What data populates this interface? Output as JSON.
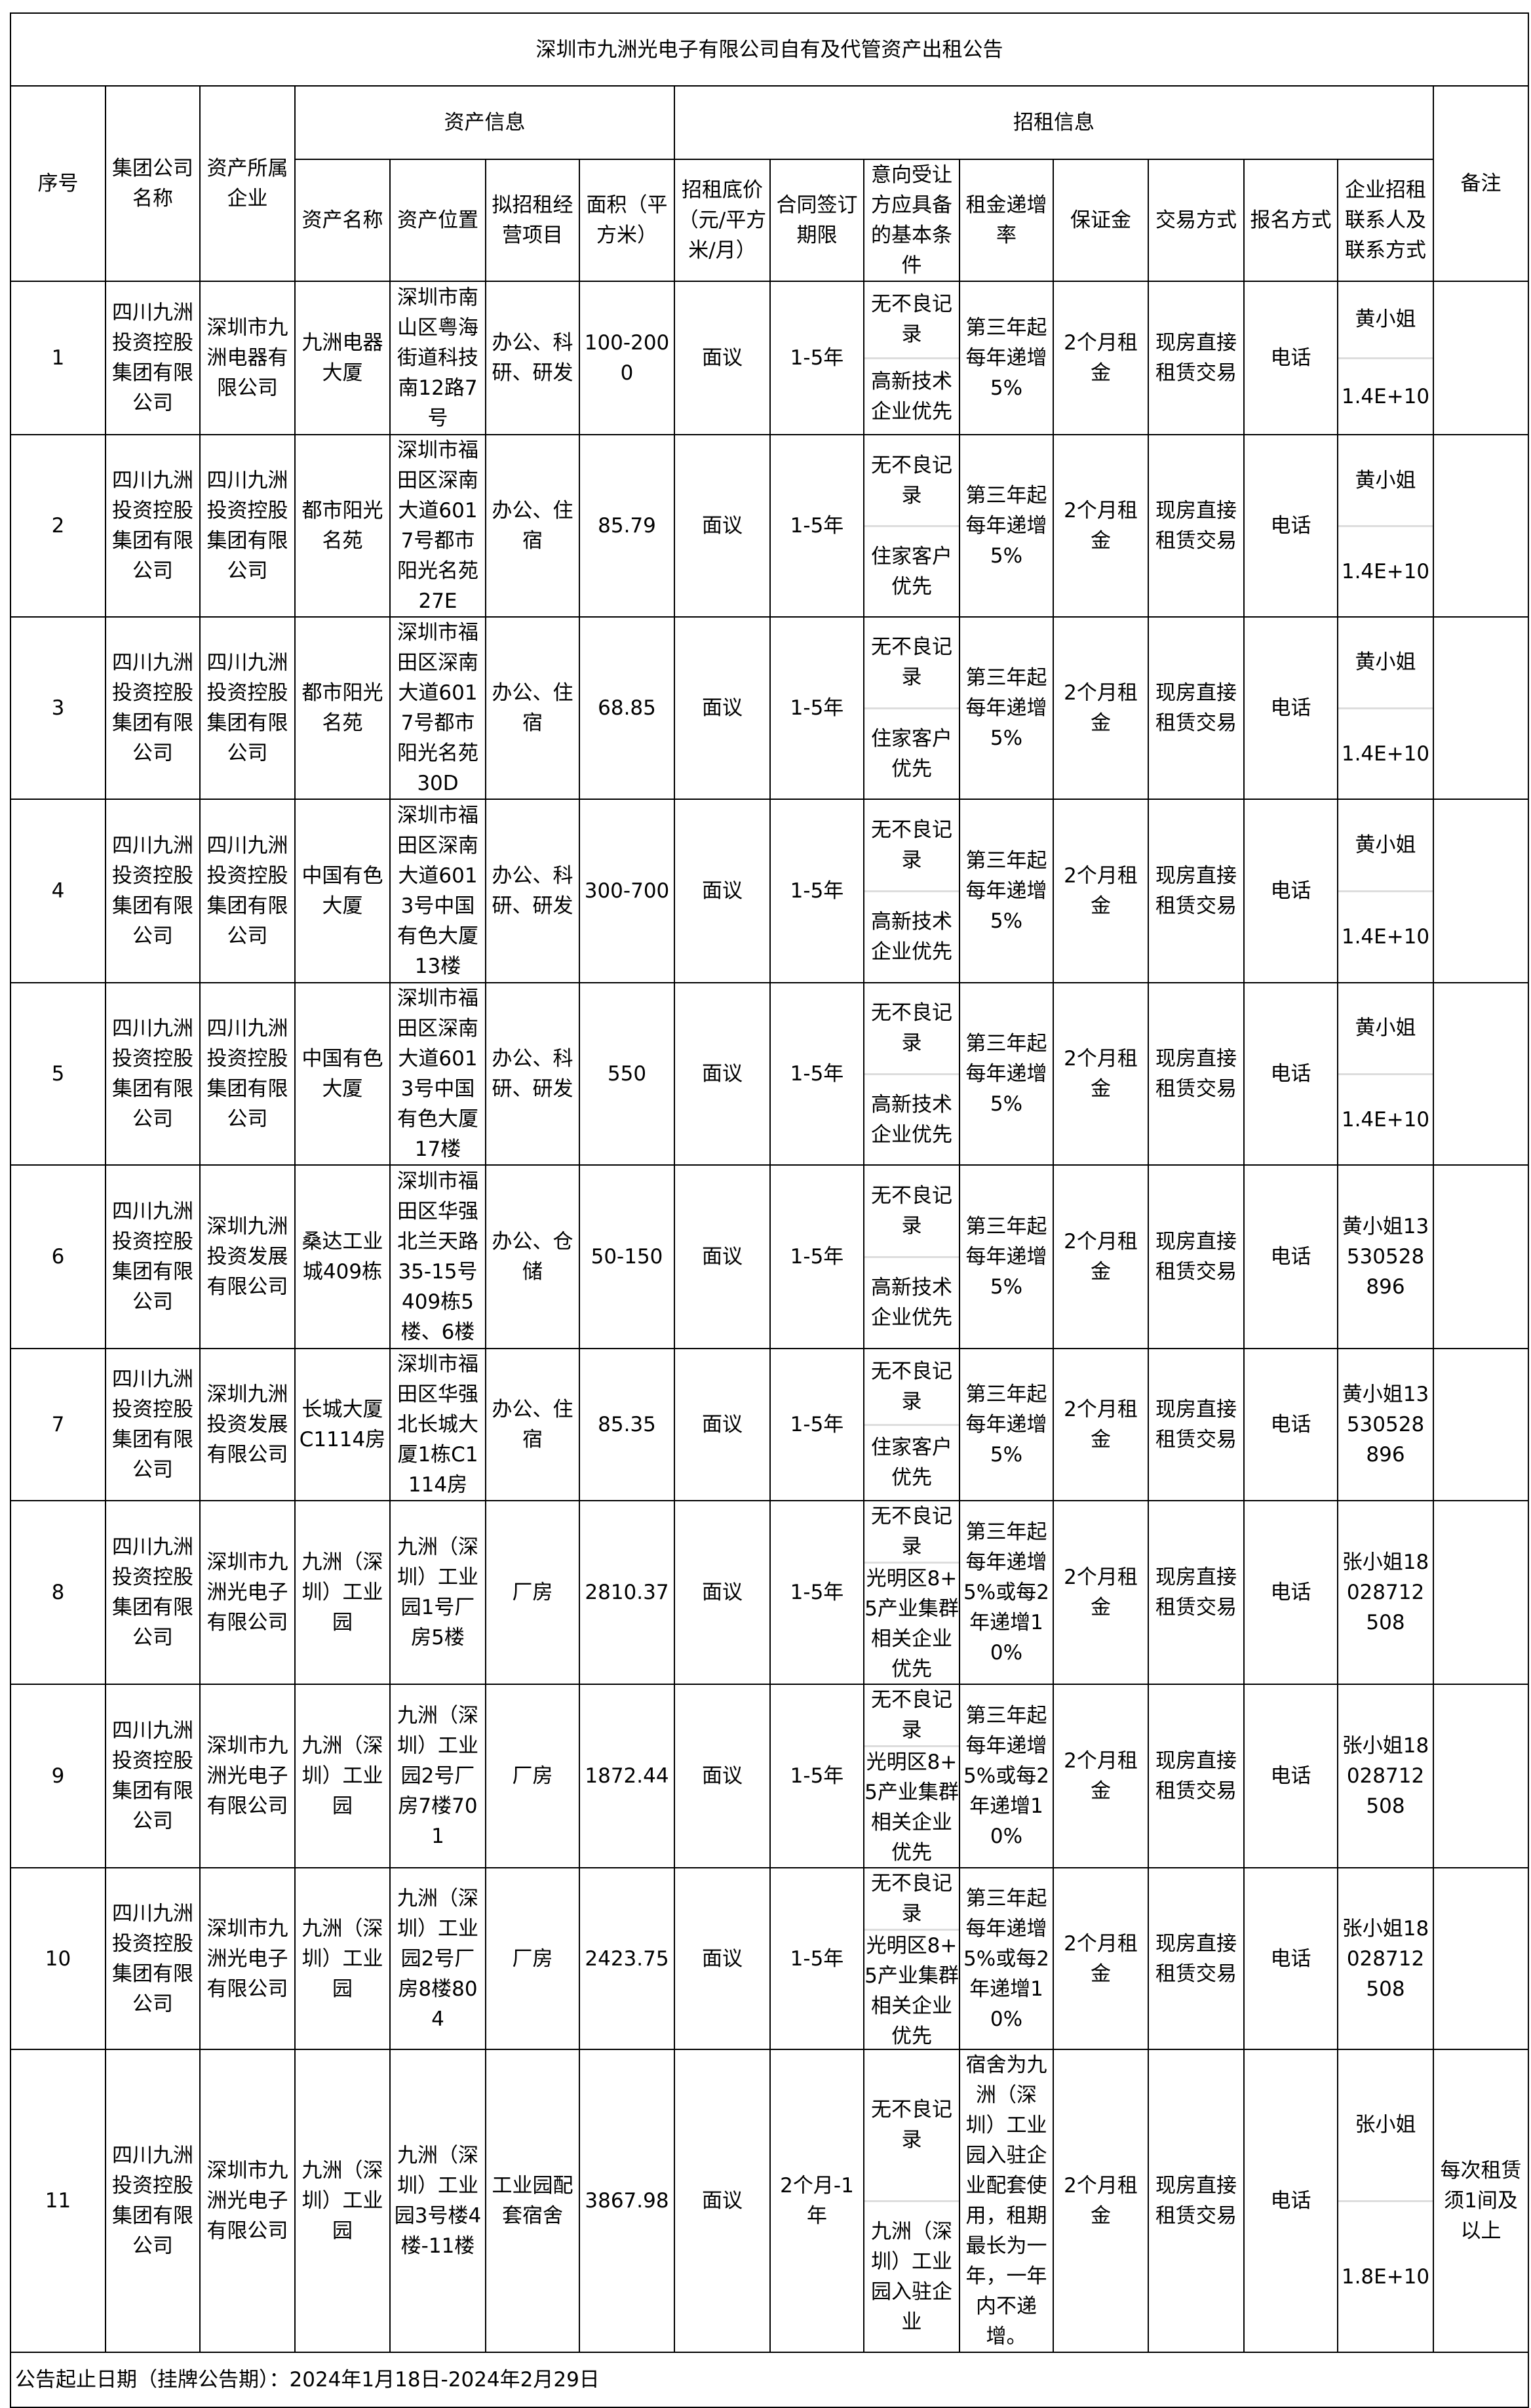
{
  "title": "深圳市九洲光电子有限公司自有及代管资产出租公告",
  "headers": {
    "seq": "序号",
    "group": "集团公司名称",
    "owner": "资产所属企业",
    "asset_info": "资产信息",
    "lease_info": "招租信息",
    "asset_name": "资产名称",
    "location": "资产位置",
    "use": "拟招租经营项目",
    "area": "面积（平方米）",
    "price": "招租底价（元/平方米/月）",
    "term": "合同签订期限",
    "conditions": "意向受让方应具备的基本条件",
    "increase": "租金递增率",
    "deposit": "保证金",
    "trade": "交易方式",
    "signup": "报名方式",
    "contact": "企业招租联系人及联系方式",
    "remark": "备注"
  },
  "rows": [
    {
      "seq": "1",
      "group": "四川九洲投资控股集团有限公司",
      "owner": "深圳市九洲电器有限公司",
      "asset_name": "九洲电器大厦",
      "location": "深圳市南山区粤海街道科技南12路7号",
      "use": "办公、科研、研发",
      "area": "100-2000",
      "price": "面议",
      "term": "1-5年",
      "cond1": "无不良记录",
      "cond2": "高新技术企业优先",
      "increase": "第三年起每年递增5%",
      "deposit": "2个月租金",
      "trade": "现房直接租赁交易",
      "signup": "电话",
      "contact1": "黄小姐",
      "contact2": "1.4E+10",
      "remark": ""
    },
    {
      "seq": "2",
      "group": "四川九洲投资控股集团有限公司",
      "owner": "四川九洲投资控股集团有限公司",
      "asset_name": "都市阳光名苑",
      "location": "深圳市福田区深南大道6017号都市阳光名苑27E",
      "use": "办公、住宿",
      "area": "85.79",
      "price": "面议",
      "term": "1-5年",
      "cond1": "无不良记录",
      "cond2": "住家客户优先",
      "increase": "第三年起每年递增5%",
      "deposit": "2个月租金",
      "trade": "现房直接租赁交易",
      "signup": "电话",
      "contact1": "黄小姐",
      "contact2": "1.4E+10",
      "remark": ""
    },
    {
      "seq": "3",
      "group": "四川九洲投资控股集团有限公司",
      "owner": "四川九洲投资控股集团有限公司",
      "asset_name": "都市阳光名苑",
      "location": "深圳市福田区深南大道6017号都市阳光名苑30D",
      "use": "办公、住宿",
      "area": "68.85",
      "price": "面议",
      "term": "1-5年",
      "cond1": "无不良记录",
      "cond2": "住家客户优先",
      "increase": "第三年起每年递增5%",
      "deposit": "2个月租金",
      "trade": "现房直接租赁交易",
      "signup": "电话",
      "contact1": "黄小姐",
      "contact2": "1.4E+10",
      "remark": ""
    },
    {
      "seq": "4",
      "group": "四川九洲投资控股集团有限公司",
      "owner": "四川九洲投资控股集团有限公司",
      "asset_name": "中国有色大厦",
      "location": "深圳市福田区深南大道6013号中国有色大厦13楼",
      "use": "办公、科研、研发",
      "area": "300-700",
      "price": "面议",
      "term": "1-5年",
      "cond1": "无不良记录",
      "cond2": "高新技术企业优先",
      "increase": "第三年起每年递增5%",
      "deposit": "2个月租金",
      "trade": "现房直接租赁交易",
      "signup": "电话",
      "contact1": "黄小姐",
      "contact2": "1.4E+10",
      "remark": ""
    },
    {
      "seq": "5",
      "group": "四川九洲投资控股集团有限公司",
      "owner": "四川九洲投资控股集团有限公司",
      "asset_name": "中国有色大厦",
      "location": "深圳市福田区深南大道6013号中国有色大厦17楼",
      "use": "办公、科研、研发",
      "area": "550",
      "price": "面议",
      "term": "1-5年",
      "cond1": "无不良记录",
      "cond2": "高新技术企业优先",
      "increase": "第三年起每年递增5%",
      "deposit": "2个月租金",
      "trade": "现房直接租赁交易",
      "signup": "电话",
      "contact1": "黄小姐",
      "contact2": "1.4E+10",
      "remark": ""
    },
    {
      "seq": "6",
      "group": "四川九洲投资控股集团有限公司",
      "owner": "深圳九洲投资发展有限公司",
      "asset_name": "桑达工业城409栋",
      "location": "深圳市福田区华强北兰天路35-15号409栋5楼、6楼",
      "use": "办公、仓储",
      "area": "50-150",
      "price": "面议",
      "term": "1-5年",
      "cond1": "无不良记录",
      "cond2": "高新技术企业优先",
      "increase": "第三年起每年递增5%",
      "deposit": "2个月租金",
      "trade": "现房直接租赁交易",
      "signup": "电话",
      "contact1": "黄小姐13530528896",
      "contact2": "",
      "remark": ""
    },
    {
      "seq": "7",
      "group": "四川九洲投资控股集团有限公司",
      "owner": "深圳九洲投资发展有限公司",
      "asset_name": "长城大厦C1114房",
      "location": "深圳市福田区华强北长城大厦1栋C1114房",
      "use": "办公、住宿",
      "area": "85.35",
      "price": "面议",
      "term": "1-5年",
      "cond1": "无不良记录",
      "cond2": "住家客户优先",
      "increase": "第三年起每年递增5%",
      "deposit": "2个月租金",
      "trade": "现房直接租赁交易",
      "signup": "电话",
      "contact1": "黄小姐13530528896",
      "contact2": "",
      "remark": ""
    },
    {
      "seq": "8",
      "group": "四川九洲投资控股集团有限公司",
      "owner": "深圳市九洲光电子有限公司",
      "asset_name": "九洲（深圳）工业园",
      "location": "九洲（深圳）工业园1号厂房5楼",
      "use": "厂房",
      "area": "2810.37",
      "price": "面议",
      "term": "1-5年",
      "cond1": "无不良记录",
      "cond2": "光明区8+5产业集群相关企业优先",
      "increase": "第三年起每年递增5%或每2年递增10%",
      "deposit": "2个月租金",
      "trade": "现房直接租赁交易",
      "signup": "电话",
      "contact1": "张小姐18028712508",
      "contact2": "",
      "remark": ""
    },
    {
      "seq": "9",
      "group": "四川九洲投资控股集团有限公司",
      "owner": "深圳市九洲光电子有限公司",
      "asset_name": "九洲（深圳）工业园",
      "location": "九洲（深圳）工业园2号厂房7楼701",
      "use": "厂房",
      "area": "1872.44",
      "price": "面议",
      "term": "1-5年",
      "cond1": "无不良记录",
      "cond2": "光明区8+5产业集群相关企业优先",
      "increase": "第三年起每年递增5%或每2年递增10%",
      "deposit": "2个月租金",
      "trade": "现房直接租赁交易",
      "signup": "电话",
      "contact1": "张小姐18028712508",
      "contact2": "",
      "remark": ""
    },
    {
      "seq": "10",
      "group": "四川九洲投资控股集团有限公司",
      "owner": "深圳市九洲光电子有限公司",
      "asset_name": "九洲（深圳）工业园",
      "location": "九洲（深圳）工业园2号厂房8楼804",
      "use": "厂房",
      "area": "2423.75",
      "price": "面议",
      "term": "1-5年",
      "cond1": "无不良记录",
      "cond2": "光明区8+5产业集群相关企业优先",
      "increase": "第三年起每年递增5%或每2年递增10%",
      "deposit": "2个月租金",
      "trade": "现房直接租赁交易",
      "signup": "电话",
      "contact1": "张小姐18028712508",
      "contact2": "",
      "remark": ""
    },
    {
      "seq": "11",
      "group": "四川九洲投资控股集团有限公司",
      "owner": "深圳市九洲光电子有限公司",
      "asset_name": "九洲（深圳）工业园",
      "location": "九洲（深圳）工业园3号楼4楼-11楼",
      "use": "工业园配套宿舍",
      "area": "3867.98",
      "price": "面议",
      "term": "2个月-1年",
      "cond1": "无不良记录",
      "cond2": "九洲（深圳）工业园入驻企业",
      "increase": "宿舍为九洲（深圳）工业园入驻企业配套使用，租期最长为一年，一年内不递增。",
      "deposit": "2个月租金",
      "trade": "现房直接租赁交易",
      "signup": "电话",
      "contact1": "张小姐",
      "contact2": "1.8E+10",
      "remark": "每次租赁须1间及以上"
    }
  ],
  "footer": "公告起止日期（挂牌公告期）：2024年1月18日-2024年2月29日"
}
